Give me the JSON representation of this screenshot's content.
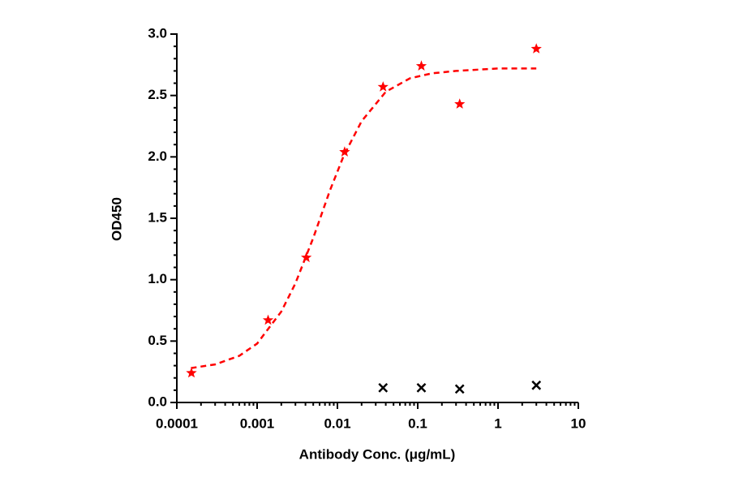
{
  "chart_data": {
    "type": "scatter",
    "x_label": "Antibody Conc. (μg/mL)",
    "y_label": "OD450",
    "xscale": "log",
    "xlim": [
      0.0001,
      10
    ],
    "xticks": [
      0.0001,
      0.001,
      0.01,
      0.1,
      1,
      10
    ],
    "ylim": [
      0,
      3
    ],
    "yticks": [
      {
        "value": 0,
        "label": "0.0"
      },
      0.5,
      {
        "value": 1,
        "label": "1.0"
      },
      1.5,
      {
        "value": 2,
        "label": "2.0"
      },
      2.5,
      {
        "value": 3,
        "label": "3.0"
      }
    ],
    "series": [
      {
        "marker": "star",
        "color": "#ff0000",
        "x": [
          0.000152,
          0.00137,
          0.0041,
          0.0123,
          0.037,
          0.111,
          0.333,
          3
        ],
        "values": [
          0.24,
          0.67,
          1.18,
          2.04,
          2.57,
          2.74,
          2.43,
          2.88
        ]
      },
      {
        "marker": "cross",
        "color": "#000000",
        "x": [
          0.037,
          0.111,
          0.333,
          3
        ],
        "values": [
          0.12,
          0.12,
          0.11,
          0.14
        ]
      },
      {
        "marker": "dashed-line",
        "color": "#ff0000",
        "x": [
          0.00015,
          0.0003,
          0.0006,
          0.001,
          0.002,
          0.003,
          0.005,
          0.008,
          0.012,
          0.02,
          0.04,
          0.08,
          0.15,
          0.3,
          1,
          3
        ],
        "values": [
          0.28,
          0.31,
          0.38,
          0.48,
          0.74,
          0.97,
          1.34,
          1.72,
          2.01,
          2.29,
          2.53,
          2.64,
          2.68,
          2.7,
          2.72,
          2.72
        ]
      }
    ]
  }
}
